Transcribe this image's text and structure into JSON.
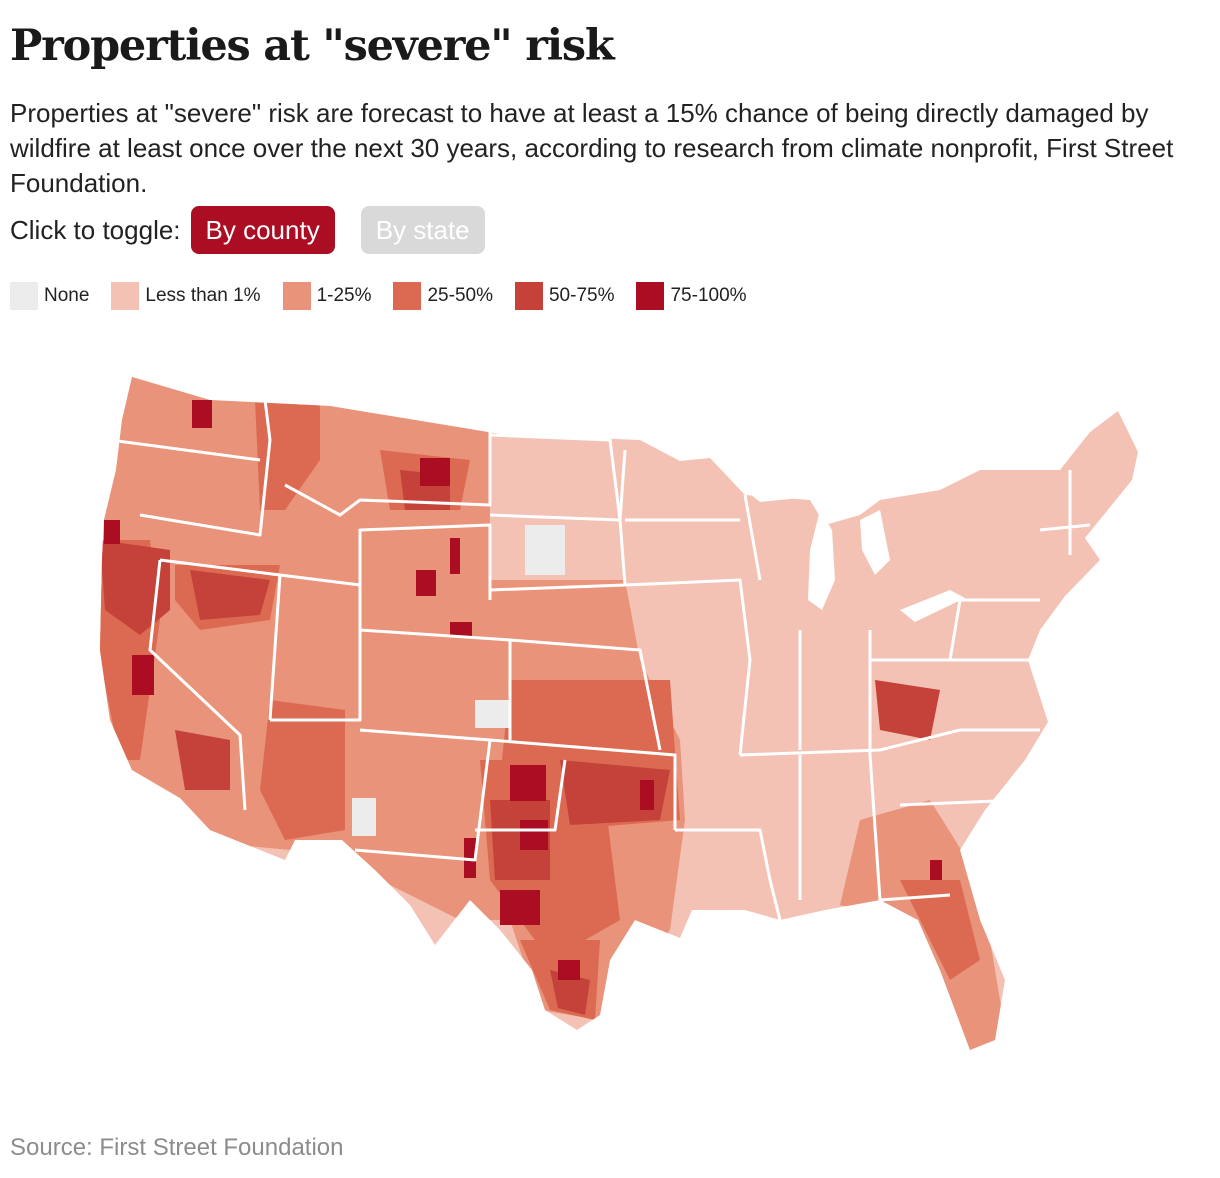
{
  "headline": "Properties at \"severe\" risk",
  "dek": "Properties at \"severe\" risk are forecast to have at least a 15% chance of being directly damaged by wildfire at least once over the next 30 years, according to research from climate nonprofit, First Street Foundation.",
  "toggle": {
    "label": "Click to toggle:",
    "options": [
      {
        "label": "By county",
        "active": true
      },
      {
        "label": "By state",
        "active": false
      }
    ]
  },
  "legend": [
    {
      "label": "None",
      "color": "#ececec"
    },
    {
      "label": "Less than 1%",
      "color": "#f3c2b5"
    },
    {
      "label": "1-25%",
      "color": "#e9937a"
    },
    {
      "label": "25-50%",
      "color": "#dc6a52"
    },
    {
      "label": "50-75%",
      "color": "#c4423a"
    },
    {
      "label": "75-100%",
      "color": "#ab0d22"
    }
  ],
  "colors": {
    "accent": "#ab0d22",
    "inactive_button": "#d9d9d9",
    "state_border": "#ffffff"
  },
  "map": {
    "type": "choropleth",
    "geography": "contiguous United States counties",
    "measure": "share of properties at severe wildfire risk"
  },
  "source": "Source: First Street Foundation"
}
